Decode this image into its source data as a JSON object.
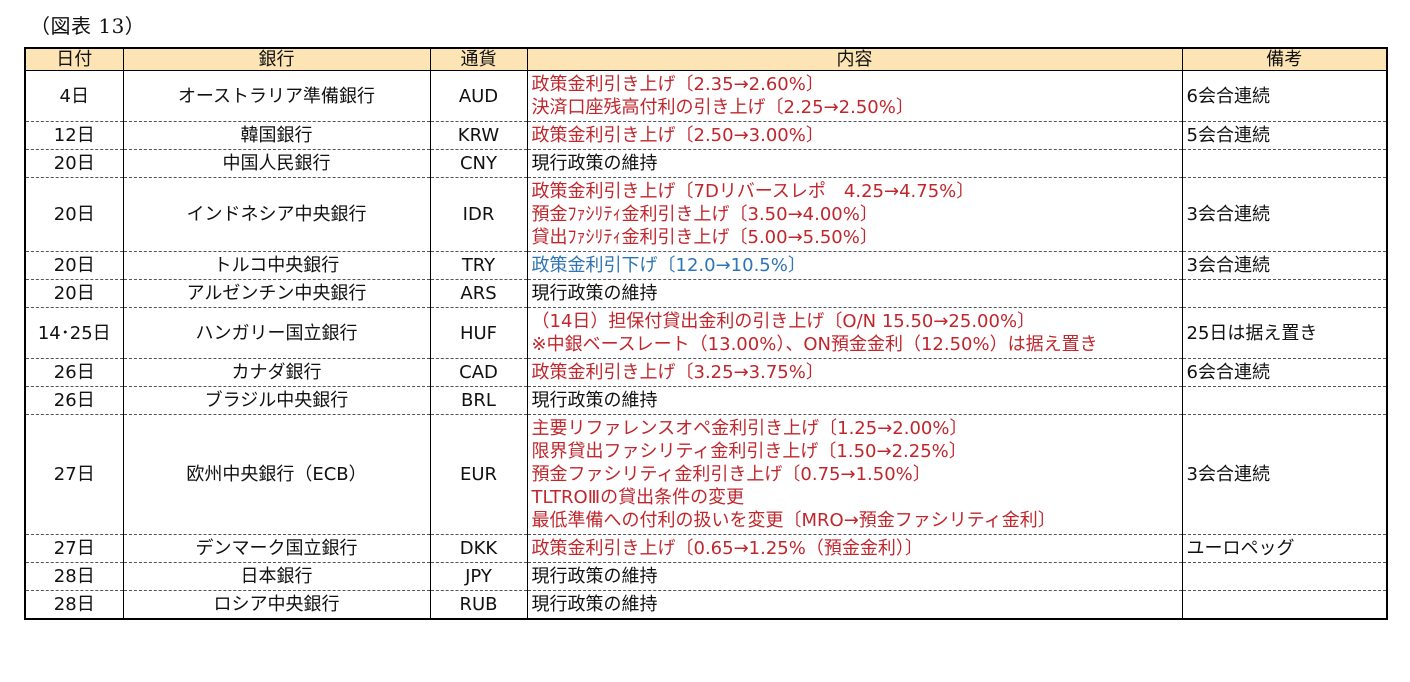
{
  "caption": "（図表 13）",
  "headers": {
    "date": "日付",
    "bank": "銀行",
    "currency": "通貨",
    "content": "内容",
    "note": "備考"
  },
  "colors": {
    "header_bg": "#fce4b4",
    "hike_text": "#c0272d",
    "cut_text": "#2e74b5",
    "neutral_text": "#111111"
  },
  "rows": [
    {
      "date": "4日",
      "bank": "オーストラリア準備銀行",
      "currency": "AUD",
      "content": [
        {
          "text": "政策金利引き上げ〔2.35→2.60%〕",
          "tone": "up"
        },
        {
          "text": "決済口座残高付利の引き上げ〔2.25→2.50%〕",
          "tone": "up"
        }
      ],
      "note": "6会合連続"
    },
    {
      "date": "12日",
      "bank": "韓国銀行",
      "currency": "KRW",
      "content": [
        {
          "text": "政策金利引き上げ〔2.50→3.00%〕",
          "tone": "up"
        }
      ],
      "note": "5会合連続"
    },
    {
      "date": "20日",
      "bank": "中国人民銀行",
      "currency": "CNY",
      "content": [
        {
          "text": "現行政策の維持",
          "tone": "neutral"
        }
      ],
      "note": ""
    },
    {
      "date": "20日",
      "bank": "インドネシア中央銀行",
      "currency": "IDR",
      "content": [
        {
          "text": "政策金利引き上げ〔7Dリバースレポ　4.25→4.75%〕",
          "tone": "up"
        },
        {
          "text": "預金ﾌｧｼﾘﾃｨ金利引き上げ〔3.50→4.00%〕",
          "tone": "up"
        },
        {
          "text": "貸出ﾌｧｼﾘﾃｨ金利引き上げ〔5.00→5.50%〕",
          "tone": "up"
        }
      ],
      "note": "3会合連続"
    },
    {
      "date": "20日",
      "bank": "トルコ中央銀行",
      "currency": "TRY",
      "content": [
        {
          "text": "政策金利引下げ〔12.0→10.5%〕",
          "tone": "down"
        }
      ],
      "note": "3会合連続"
    },
    {
      "date": "20日",
      "bank": "アルゼンチン中央銀行",
      "currency": "ARS",
      "content": [
        {
          "text": "現行政策の維持",
          "tone": "neutral"
        }
      ],
      "note": ""
    },
    {
      "date": "14･25日",
      "bank": "ハンガリー国立銀行",
      "currency": "HUF",
      "content": [
        {
          "text": "（14日）担保付貸出金利の引き上げ〔O/N 15.50→25.00%〕",
          "tone": "up"
        },
        {
          "text": "※中銀ベースレート（13.00%）、ON預金金利（12.50%）は据え置き",
          "tone": "up"
        }
      ],
      "note": "25日は据え置き"
    },
    {
      "date": "26日",
      "bank": "カナダ銀行",
      "currency": "CAD",
      "content": [
        {
          "text": "政策金利引き上げ〔3.25→3.75%〕",
          "tone": "up"
        }
      ],
      "note": "6会合連続"
    },
    {
      "date": "26日",
      "bank": "ブラジル中央銀行",
      "currency": "BRL",
      "content": [
        {
          "text": "現行政策の維持",
          "tone": "neutral"
        }
      ],
      "note": ""
    },
    {
      "date": "27日",
      "bank": "欧州中央銀行（ECB）",
      "currency": "EUR",
      "content": [
        {
          "text": "主要リファレンスオペ金利引き上げ〔1.25→2.00%〕",
          "tone": "up"
        },
        {
          "text": "限界貸出ファシリティ金利引き上げ〔1.50→2.25%〕",
          "tone": "up"
        },
        {
          "text": "預金ファシリティ金利引き上げ〔0.75→1.50%〕",
          "tone": "up"
        },
        {
          "text": "TLTROⅢの貸出条件の変更",
          "tone": "up"
        },
        {
          "text": "最低準備への付利の扱いを変更〔MRO→預金ファシリティ金利〕",
          "tone": "up"
        }
      ],
      "note": "3会合連続"
    },
    {
      "date": "27日",
      "bank": "デンマーク国立銀行",
      "currency": "DKK",
      "content": [
        {
          "text": "政策金利引き上げ〔0.65→1.25%（預金金利）〕",
          "tone": "up"
        }
      ],
      "note": "ユーロペッグ"
    },
    {
      "date": "28日",
      "bank": "日本銀行",
      "currency": "JPY",
      "content": [
        {
          "text": "現行政策の維持",
          "tone": "neutral"
        }
      ],
      "note": ""
    },
    {
      "date": "28日",
      "bank": "ロシア中央銀行",
      "currency": "RUB",
      "content": [
        {
          "text": "現行政策の維持",
          "tone": "neutral"
        }
      ],
      "note": ""
    }
  ]
}
